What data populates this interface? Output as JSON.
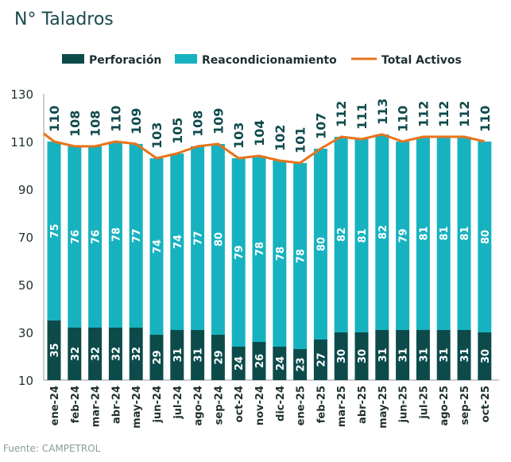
{
  "chart_data": {
    "type": "bar",
    "title": "N° Taladros",
    "source": "Fuente: CAMPETROL",
    "stacked": true,
    "legend_position": "top",
    "grid": false,
    "ylim": [
      10,
      130
    ],
    "yticks": [
      10,
      30,
      50,
      70,
      90,
      110,
      130
    ],
    "categories": [
      "ene-24",
      "feb-24",
      "mar-24",
      "abr-24",
      "may-24",
      "jun-24",
      "jul-24",
      "ago-24",
      "sep-24",
      "oct-24",
      "nov-24",
      "dic-24",
      "ene-25",
      "feb-25",
      "mar-25",
      "abr-25",
      "may-25",
      "jun-25",
      "jul-25",
      "ago-25",
      "sep-25",
      "oct-25"
    ],
    "series": [
      {
        "name": "Perforación",
        "type": "bar",
        "color": "#0d4b4b",
        "values": [
          35,
          32,
          32,
          32,
          32,
          29,
          31,
          31,
          29,
          24,
          26,
          24,
          23,
          27,
          30,
          30,
          31,
          31,
          31,
          31,
          31,
          30
        ]
      },
      {
        "name": "Reacondicionamiento",
        "type": "bar",
        "color": "#17b2bf",
        "values": [
          75,
          76,
          76,
          78,
          77,
          74,
          74,
          77,
          80,
          79,
          78,
          78,
          78,
          80,
          82,
          81,
          82,
          79,
          81,
          81,
          81,
          80
        ]
      },
      {
        "name": "Total Activos",
        "type": "line",
        "color": "#e8731c",
        "values": [
          110,
          108,
          108,
          110,
          109,
          103,
          105,
          108,
          109,
          103,
          104,
          102,
          101,
          107,
          112,
          111,
          113,
          110,
          112,
          112,
          112,
          110
        ]
      }
    ]
  }
}
